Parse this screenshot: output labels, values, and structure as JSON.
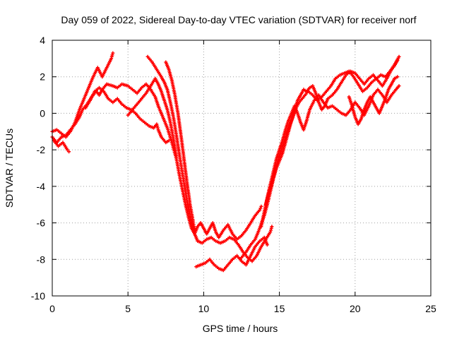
{
  "chart_data": {
    "type": "scatter",
    "title": "Day 059 of 2022, Sidereal Day-to-day VTEC variation (SDTVAR) for receiver norf",
    "xlabel": "GPS time / hours",
    "ylabel": "SDTVAR / TECUs",
    "xlim": [
      0,
      25
    ],
    "ylim": [
      -10,
      4
    ],
    "xticks": [
      "0",
      "5",
      "10",
      "15",
      "20",
      "25"
    ],
    "yticks": [
      "4",
      "2",
      "0",
      "-2",
      "-4",
      "-6",
      "-8",
      "-10"
    ],
    "grid": true,
    "color": "#ff0000",
    "marker": "plus",
    "series": [
      {
        "points": [
          [
            0.0,
            -1.3
          ],
          [
            0.3,
            -1.6
          ],
          [
            0.6,
            -1.3
          ],
          [
            0.9,
            -1.2
          ],
          [
            1.2,
            -0.9
          ],
          [
            1.5,
            -0.6
          ],
          [
            1.8,
            -0.2
          ],
          [
            2.0,
            0.2
          ],
          [
            2.3,
            0.5
          ],
          [
            2.6,
            0.9
          ],
          [
            2.9,
            1.2
          ],
          [
            3.1,
            1.0
          ],
          [
            3.3,
            1.3
          ],
          [
            3.6,
            1.6
          ],
          [
            4.0,
            1.5
          ],
          [
            4.3,
            1.4
          ],
          [
            4.6,
            1.6
          ],
          [
            5.0,
            1.5
          ],
          [
            5.3,
            1.3
          ],
          [
            5.6,
            1.1
          ],
          [
            5.9,
            1.4
          ],
          [
            6.2,
            1.6
          ],
          [
            6.5,
            1.3
          ],
          [
            6.8,
            0.9
          ],
          [
            7.0,
            0.4
          ],
          [
            7.3,
            -0.2
          ],
          [
            7.6,
            -0.8
          ],
          [
            7.9,
            -1.6
          ],
          [
            8.2,
            -2.5
          ],
          [
            8.4,
            -3.4
          ],
          [
            8.6,
            -4.2
          ],
          [
            8.8,
            -5.0
          ],
          [
            9.0,
            -5.7
          ],
          [
            9.2,
            -6.3
          ],
          [
            9.4,
            -6.6
          ],
          [
            9.6,
            -6.2
          ],
          [
            9.8,
            -6.0
          ],
          [
            10.0,
            -6.3
          ],
          [
            10.2,
            -6.6
          ],
          [
            10.4,
            -6.3
          ],
          [
            10.6,
            -6.0
          ],
          [
            10.8,
            -6.5
          ],
          [
            11.0,
            -6.8
          ],
          [
            11.3,
            -6.4
          ],
          [
            11.6,
            -6.1
          ],
          [
            11.9,
            -6.6
          ],
          [
            12.2,
            -6.9
          ],
          [
            12.5,
            -6.7
          ],
          [
            12.8,
            -6.4
          ],
          [
            13.1,
            -6.0
          ],
          [
            13.4,
            -5.6
          ],
          [
            13.7,
            -5.3
          ],
          [
            13.8,
            -5.1
          ]
        ]
      },
      {
        "points": [
          [
            0.0,
            -1.0
          ],
          [
            0.3,
            -0.9
          ],
          [
            0.6,
            -1.1
          ],
          [
            0.9,
            -1.3
          ],
          [
            1.2,
            -1.0
          ],
          [
            1.5,
            -0.5
          ],
          [
            1.8,
            0.2
          ],
          [
            2.1,
            0.8
          ],
          [
            2.4,
            1.4
          ],
          [
            2.7,
            2.0
          ],
          [
            3.0,
            2.5
          ],
          [
            3.3,
            2.0
          ],
          [
            3.6,
            2.5
          ],
          [
            3.9,
            3.0
          ],
          [
            4.0,
            3.3
          ]
        ]
      },
      {
        "points": [
          [
            0.1,
            -1.5
          ],
          [
            0.4,
            -1.8
          ],
          [
            0.7,
            -1.6
          ],
          [
            1.0,
            -2.0
          ],
          [
            1.1,
            -2.1
          ]
        ]
      },
      {
        "points": [
          [
            2.2,
            0.3
          ],
          [
            2.5,
            0.7
          ],
          [
            2.8,
            1.2
          ],
          [
            3.1,
            1.4
          ],
          [
            3.4,
            1.2
          ],
          [
            3.7,
            0.8
          ],
          [
            4.0,
            0.6
          ],
          [
            4.3,
            0.8
          ],
          [
            4.6,
            0.5
          ],
          [
            4.9,
            0.3
          ],
          [
            5.2,
            0.2
          ],
          [
            5.5,
            0.0
          ],
          [
            5.8,
            -0.3
          ],
          [
            6.1,
            -0.5
          ],
          [
            6.4,
            -0.7
          ],
          [
            6.7,
            -0.8
          ],
          [
            6.9,
            -0.6
          ],
          [
            7.0,
            -0.9
          ],
          [
            7.2,
            -1.3
          ],
          [
            7.5,
            -1.6
          ],
          [
            7.7,
            -1.5
          ]
        ]
      },
      {
        "points": [
          [
            5.0,
            -0.1
          ],
          [
            5.3,
            0.2
          ],
          [
            5.6,
            0.5
          ],
          [
            5.9,
            0.8
          ],
          [
            6.2,
            1.1
          ],
          [
            6.5,
            1.5
          ],
          [
            6.8,
            1.9
          ],
          [
            7.0,
            1.6
          ],
          [
            7.2,
            1.2
          ],
          [
            7.4,
            0.7
          ],
          [
            7.6,
            0.2
          ],
          [
            7.8,
            -0.5
          ],
          [
            8.0,
            -1.4
          ],
          [
            8.2,
            -2.4
          ]
        ]
      },
      {
        "points": [
          [
            6.3,
            3.1
          ],
          [
            6.6,
            2.8
          ],
          [
            6.9,
            2.4
          ],
          [
            7.2,
            2.0
          ],
          [
            7.4,
            1.7
          ],
          [
            7.6,
            1.3
          ],
          [
            7.8,
            0.6
          ],
          [
            8.0,
            -0.2
          ],
          [
            8.2,
            -1.2
          ],
          [
            8.4,
            -2.3
          ],
          [
            8.6,
            -3.3
          ],
          [
            8.8,
            -4.3
          ],
          [
            9.0,
            -5.2
          ],
          [
            9.2,
            -5.9
          ],
          [
            9.4,
            -6.6
          ],
          [
            9.6,
            -7.0
          ],
          [
            9.9,
            -7.1
          ],
          [
            10.2,
            -6.9
          ],
          [
            10.5,
            -6.8
          ],
          [
            10.8,
            -7.0
          ],
          [
            11.1,
            -7.1
          ],
          [
            11.4,
            -7.0
          ],
          [
            11.7,
            -6.8
          ],
          [
            12.0,
            -6.9
          ],
          [
            12.3,
            -7.2
          ],
          [
            12.6,
            -7.6
          ],
          [
            12.9,
            -7.9
          ],
          [
            13.2,
            -8.1
          ],
          [
            13.5,
            -7.8
          ],
          [
            13.8,
            -7.3
          ],
          [
            14.1,
            -6.9
          ],
          [
            14.4,
            -6.5
          ],
          [
            14.5,
            -6.2
          ]
        ]
      },
      {
        "points": [
          [
            7.5,
            2.8
          ],
          [
            7.7,
            2.4
          ],
          [
            7.9,
            1.8
          ],
          [
            8.1,
            1.0
          ],
          [
            8.3,
            0.0
          ],
          [
            8.5,
            -1.2
          ],
          [
            8.7,
            -2.5
          ],
          [
            8.9,
            -3.8
          ],
          [
            9.1,
            -5.0
          ],
          [
            9.3,
            -5.9
          ],
          [
            9.4,
            -6.4
          ]
        ]
      },
      {
        "points": [
          [
            9.5,
            -8.4
          ],
          [
            9.8,
            -8.3
          ],
          [
            10.1,
            -8.2
          ],
          [
            10.4,
            -8.0
          ],
          [
            10.7,
            -8.3
          ],
          [
            11.0,
            -8.5
          ],
          [
            11.3,
            -8.6
          ],
          [
            11.6,
            -8.3
          ],
          [
            11.9,
            -8.0
          ],
          [
            12.2,
            -7.8
          ],
          [
            12.5,
            -8.1
          ],
          [
            12.8,
            -8.3
          ],
          [
            13.1,
            -7.8
          ],
          [
            13.4,
            -7.3
          ],
          [
            13.7,
            -7.0
          ],
          [
            14.0,
            -6.8
          ],
          [
            14.2,
            -7.2
          ]
        ]
      },
      {
        "points": [
          [
            12.5,
            -7.9
          ],
          [
            12.8,
            -7.6
          ],
          [
            13.1,
            -7.2
          ],
          [
            13.4,
            -6.9
          ],
          [
            13.7,
            -6.3
          ],
          [
            14.0,
            -5.6
          ],
          [
            14.2,
            -5.0
          ],
          [
            14.4,
            -4.3
          ],
          [
            14.6,
            -3.6
          ],
          [
            14.8,
            -3.0
          ],
          [
            15.0,
            -2.6
          ],
          [
            15.2,
            -2.2
          ],
          [
            15.4,
            -1.6
          ],
          [
            15.6,
            -1.0
          ],
          [
            15.8,
            -0.4
          ],
          [
            16.0,
            0.2
          ],
          [
            16.2,
            0.7
          ],
          [
            16.4,
            1.0
          ],
          [
            16.6,
            1.3
          ],
          [
            16.8,
            1.2
          ],
          [
            17.0,
            1.4
          ],
          [
            17.2,
            1.5
          ],
          [
            17.4,
            1.1
          ],
          [
            17.6,
            0.6
          ],
          [
            17.8,
            0.2
          ],
          [
            18.0,
            0.4
          ],
          [
            18.2,
            0.8
          ],
          [
            18.5,
            1.0
          ],
          [
            18.8,
            1.3
          ],
          [
            19.1,
            1.7
          ],
          [
            19.4,
            2.1
          ],
          [
            19.7,
            2.3
          ],
          [
            20.0,
            2.2
          ],
          [
            20.3,
            1.9
          ],
          [
            20.6,
            1.6
          ],
          [
            20.9,
            1.9
          ],
          [
            21.2,
            2.1
          ],
          [
            21.5,
            1.8
          ],
          [
            21.8,
            1.5
          ],
          [
            22.1,
            1.9
          ],
          [
            22.4,
            2.4
          ],
          [
            22.7,
            2.8
          ],
          [
            22.9,
            3.1
          ]
        ]
      },
      {
        "points": [
          [
            13.8,
            -6.2
          ],
          [
            14.0,
            -5.4
          ],
          [
            14.2,
            -4.6
          ],
          [
            14.4,
            -3.9
          ],
          [
            14.6,
            -3.2
          ],
          [
            14.8,
            -2.5
          ],
          [
            15.0,
            -2.0
          ],
          [
            15.2,
            -1.5
          ],
          [
            15.4,
            -0.9
          ],
          [
            15.6,
            -0.4
          ],
          [
            15.8,
            0.0
          ],
          [
            16.0,
            0.4
          ],
          [
            16.2,
            0.0
          ],
          [
            16.4,
            -0.5
          ],
          [
            16.6,
            -0.9
          ],
          [
            16.8,
            -0.4
          ],
          [
            17.0,
            0.2
          ],
          [
            17.3,
            0.7
          ],
          [
            17.6,
            1.0
          ],
          [
            17.9,
            0.6
          ],
          [
            18.2,
            0.3
          ],
          [
            18.5,
            0.4
          ],
          [
            18.8,
            0.2
          ],
          [
            19.1,
            0.0
          ],
          [
            19.4,
            -0.1
          ],
          [
            19.7,
            0.2
          ],
          [
            20.0,
            0.6
          ],
          [
            20.3,
            0.3
          ],
          [
            20.6,
            -0.1
          ],
          [
            20.9,
            0.4
          ],
          [
            21.2,
            1.0
          ],
          [
            21.5,
            1.3
          ],
          [
            21.8,
            1.0
          ],
          [
            22.1,
            0.6
          ],
          [
            22.4,
            1.0
          ],
          [
            22.7,
            1.3
          ],
          [
            22.9,
            1.5
          ]
        ]
      },
      {
        "points": [
          [
            14.1,
            -5.0
          ],
          [
            14.3,
            -4.4
          ],
          [
            14.5,
            -3.8
          ],
          [
            14.7,
            -3.2
          ],
          [
            14.9,
            -2.6
          ],
          [
            15.1,
            -2.1
          ],
          [
            15.3,
            -1.6
          ],
          [
            15.5,
            -1.1
          ],
          [
            15.7,
            -0.6
          ],
          [
            15.9,
            -0.2
          ],
          [
            16.1,
            0.3
          ],
          [
            16.3,
            0.6
          ],
          [
            16.6,
            0.9
          ],
          [
            16.9,
            1.2
          ],
          [
            17.2,
            1.0
          ],
          [
            17.5,
            0.7
          ],
          [
            17.8,
            0.9
          ],
          [
            18.1,
            1.2
          ],
          [
            18.4,
            1.5
          ],
          [
            18.7,
            1.9
          ],
          [
            19.0,
            2.1
          ],
          [
            19.3,
            2.2
          ],
          [
            19.6,
            2.3
          ],
          [
            19.9,
            2.0
          ],
          [
            20.2,
            1.6
          ],
          [
            20.5,
            1.2
          ],
          [
            20.8,
            1.4
          ],
          [
            21.1,
            1.7
          ],
          [
            21.4,
            1.9
          ],
          [
            21.7,
            2.1
          ],
          [
            22.0,
            2.0
          ],
          [
            22.3,
            2.3
          ],
          [
            22.6,
            2.6
          ],
          [
            22.8,
            2.9
          ]
        ]
      },
      {
        "points": [
          [
            19.6,
            0.9
          ],
          [
            19.8,
            0.4
          ],
          [
            20.0,
            -0.2
          ],
          [
            20.2,
            -0.6
          ],
          [
            20.4,
            -0.3
          ],
          [
            20.6,
            0.2
          ],
          [
            20.8,
            0.6
          ],
          [
            21.0,
            0.9
          ],
          [
            21.2,
            0.6
          ],
          [
            21.4,
            0.3
          ],
          [
            21.6,
            0.0
          ],
          [
            21.8,
            0.4
          ],
          [
            22.0,
            0.8
          ],
          [
            22.2,
            1.3
          ],
          [
            22.4,
            1.6
          ],
          [
            22.6,
            1.9
          ],
          [
            22.8,
            2.0
          ]
        ]
      }
    ]
  }
}
